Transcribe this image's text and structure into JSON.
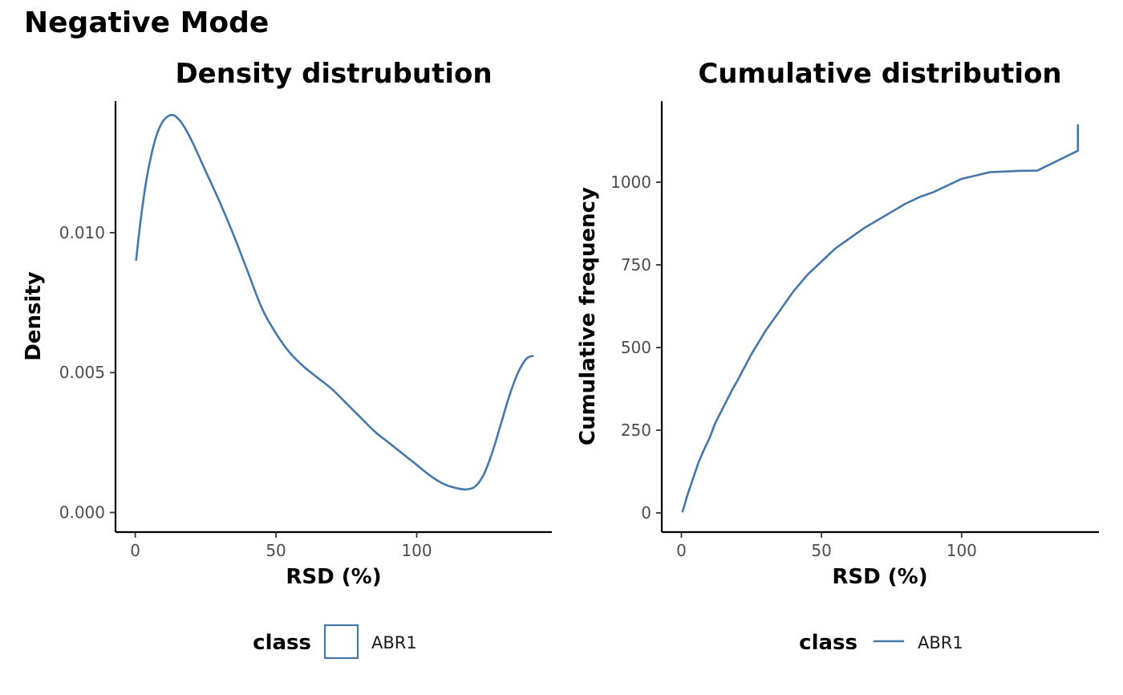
{
  "figure": {
    "title": "Negative Mode"
  },
  "colors": {
    "series": "#4477AA",
    "axis": "#000000",
    "tick_text": "#4d4d4d"
  },
  "chart_data": [
    {
      "type": "line",
      "title": "Density distrubution",
      "xlabel": "RSD (%)",
      "ylabel": "Density",
      "xlim": [
        -7,
        148
      ],
      "ylim": [
        -0.0007,
        0.0147
      ],
      "x_ticks": [
        0,
        50,
        100
      ],
      "x_tick_labels": [
        "0",
        "50",
        "100"
      ],
      "y_ticks": [
        0,
        0.005,
        0.01
      ],
      "y_tick_labels": [
        "0.000",
        "0.005",
        "0.010"
      ],
      "grid": false,
      "legend": {
        "title": "class",
        "key": "box",
        "position": "bottom"
      },
      "series": [
        {
          "name": "ABR1",
          "x": [
            0.3,
            2,
            4,
            6,
            8,
            10,
            12,
            13.5,
            15,
            17,
            20,
            25,
            30,
            35,
            40,
            45,
            50,
            55,
            60,
            65,
            70,
            75,
            80,
            85,
            90,
            95,
            100,
            105,
            110,
            115,
            118,
            121,
            124,
            127,
            130,
            133,
            136,
            139,
            141.5
          ],
          "y": [
            0.009,
            0.0105,
            0.0119,
            0.0129,
            0.0136,
            0.014,
            0.01418,
            0.0142,
            0.0141,
            0.01385,
            0.0133,
            0.0122,
            0.0111,
            0.0099,
            0.0086,
            0.0073,
            0.0064,
            0.0057,
            0.0052,
            0.0048,
            0.0044,
            0.0039,
            0.0034,
            0.0029,
            0.0025,
            0.0021,
            0.0017,
            0.0013,
            0.001,
            0.00085,
            0.00083,
            0.00095,
            0.0014,
            0.0022,
            0.0032,
            0.0042,
            0.005,
            0.0055,
            0.0056
          ]
        }
      ]
    },
    {
      "type": "line",
      "title": "Cumulative distribution",
      "xlabel": "RSD (%)",
      "ylabel": "Cumulative frequency",
      "xlim": [
        -7,
        149
      ],
      "ylim": [
        -58,
        1245
      ],
      "x_ticks": [
        0,
        50,
        100
      ],
      "x_tick_labels": [
        "0",
        "50",
        "100"
      ],
      "y_ticks": [
        0,
        250,
        500,
        750,
        1000
      ],
      "y_tick_labels": [
        "0",
        "250",
        "500",
        "750",
        "1000"
      ],
      "grid": false,
      "legend": {
        "title": "class",
        "key": "line",
        "position": "bottom"
      },
      "series": [
        {
          "name": "ABR1",
          "x": [
            0.3,
            1,
            2,
            3,
            4,
            5,
            6,
            8,
            10,
            12,
            15,
            18,
            20,
            25,
            30,
            35,
            40,
            45,
            50,
            55,
            60,
            65,
            70,
            75,
            80,
            85,
            90,
            95,
            100,
            105,
            110,
            115,
            120,
            127,
            141.5,
            141.5
          ],
          "y": [
            2,
            20,
            50,
            75,
            100,
            125,
            150,
            190,
            225,
            270,
            320,
            370,
            400,
            480,
            550,
            610,
            670,
            720,
            760,
            800,
            830,
            860,
            885,
            910,
            935,
            955,
            970,
            990,
            1010,
            1020,
            1030,
            1032,
            1034,
            1035,
            1095,
            1175
          ]
        }
      ]
    }
  ]
}
